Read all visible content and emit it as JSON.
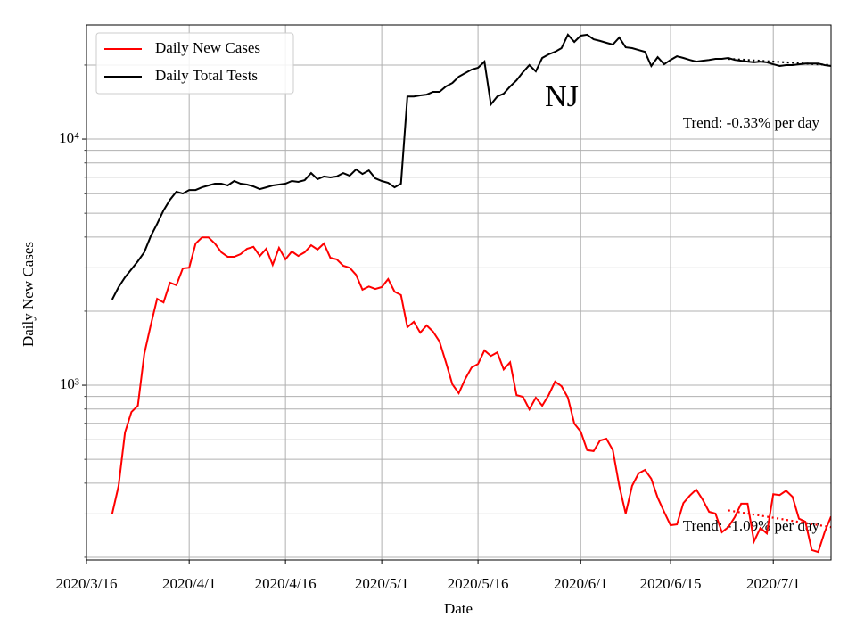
{
  "chart_data": {
    "type": "line",
    "annotations": {
      "title": "NJ",
      "trend_tests": "Trend: -0.33% per day",
      "trend_cases": "Trend: -1.09% per day"
    },
    "x_label": "Date",
    "y_label": "Daily New Cases",
    "log_y": true,
    "grid": true,
    "legend": "upper left",
    "xlim": [
      "2020/3/16",
      "2020/7/10"
    ],
    "xticks": [
      "2020/3/16",
      "2020/4/1",
      "2020/4/16",
      "2020/5/1",
      "2020/5/16",
      "2020/6/1",
      "2020/6/15",
      "2020/7/1"
    ],
    "ylim": [
      195,
      29100
    ],
    "yticks": [
      {
        "value": 1000,
        "label": "10³"
      },
      {
        "value": 10000,
        "label": "10⁴"
      }
    ],
    "yminor_ticks": [
      200,
      300,
      400,
      500,
      600,
      700,
      800,
      900,
      2000,
      3000,
      4000,
      5000,
      6000,
      7000,
      8000,
      9000,
      20000
    ],
    "x": [
      "2020/3/20",
      "2020/3/21",
      "2020/3/22",
      "2020/3/23",
      "2020/3/24",
      "2020/3/25",
      "2020/3/26",
      "2020/3/27",
      "2020/3/28",
      "2020/3/29",
      "2020/3/30",
      "2020/3/31",
      "2020/4/1",
      "2020/4/2",
      "2020/4/3",
      "2020/4/4",
      "2020/4/5",
      "2020/4/6",
      "2020/4/7",
      "2020/4/8",
      "2020/4/9",
      "2020/4/10",
      "2020/4/11",
      "2020/4/12",
      "2020/4/13",
      "2020/4/14",
      "2020/4/15",
      "2020/4/16",
      "2020/4/17",
      "2020/4/18",
      "2020/4/19",
      "2020/4/20",
      "2020/4/21",
      "2020/4/22",
      "2020/4/23",
      "2020/4/24",
      "2020/4/25",
      "2020/4/26",
      "2020/4/27",
      "2020/4/28",
      "2020/4/29",
      "2020/4/30",
      "2020/5/1",
      "2020/5/2",
      "2020/5/3",
      "2020/5/4",
      "2020/5/5",
      "2020/5/6",
      "2020/5/7",
      "2020/5/8",
      "2020/5/9",
      "2020/5/10",
      "2020/5/11",
      "2020/5/12",
      "2020/5/13",
      "2020/5/14",
      "2020/5/15",
      "2020/5/16",
      "2020/5/17",
      "2020/5/18",
      "2020/5/19",
      "2020/5/20",
      "2020/5/21",
      "2020/5/22",
      "2020/5/23",
      "2020/5/24",
      "2020/5/25",
      "2020/5/26",
      "2020/5/27",
      "2020/5/28",
      "2020/5/29",
      "2020/5/30",
      "2020/5/31",
      "2020/6/1",
      "2020/6/2",
      "2020/6/3",
      "2020/6/4",
      "2020/6/5",
      "2020/6/6",
      "2020/6/7",
      "2020/6/8",
      "2020/6/9",
      "2020/6/10",
      "2020/6/11",
      "2020/6/12",
      "2020/6/13",
      "2020/6/14",
      "2020/6/15",
      "2020/6/16",
      "2020/6/17",
      "2020/6/18",
      "2020/6/19",
      "2020/6/20",
      "2020/6/21",
      "2020/6/22",
      "2020/6/23",
      "2020/6/24",
      "2020/6/25",
      "2020/6/26",
      "2020/6/27",
      "2020/6/28",
      "2020/6/29",
      "2020/6/30",
      "2020/7/1",
      "2020/7/2",
      "2020/7/3",
      "2020/7/4",
      "2020/7/5",
      "2020/7/6",
      "2020/7/7",
      "2020/7/8",
      "2020/7/9",
      "2020/7/10"
    ],
    "series": [
      {
        "name": "Daily New Cases",
        "color": "#ff0000",
        "values": [
          300,
          390,
          643,
          778,
          826,
          1340,
          1750,
          2245,
          2170,
          2610,
          2550,
          2985,
          3005,
          3765,
          3990,
          3990,
          3765,
          3470,
          3325,
          3325,
          3410,
          3585,
          3650,
          3350,
          3585,
          3085,
          3615,
          3245,
          3495,
          3350,
          3470,
          3705,
          3560,
          3765,
          3295,
          3245,
          3060,
          3005,
          2810,
          2445,
          2520,
          2460,
          2505,
          2700,
          2400,
          2325,
          1720,
          1810,
          1635,
          1750,
          1650,
          1505,
          1240,
          1010,
          928,
          1060,
          1180,
          1220,
          1385,
          1315,
          1360,
          1160,
          1240,
          912,
          897,
          798,
          890,
          826,
          912,
          1035,
          992,
          890,
          698,
          648,
          545,
          540,
          596,
          606,
          545,
          390,
          301,
          390,
          438,
          453,
          417,
          349,
          306,
          270,
          272,
          332,
          356,
          377,
          343,
          306,
          301,
          253,
          265,
          291,
          330,
          330,
          232,
          263,
          250,
          361,
          358,
          373,
          352,
          287,
          279,
          214,
          210,
          253,
          293
        ]
      },
      {
        "name": "Daily Total Tests",
        "color": "#000000",
        "values": [
          2230,
          2505,
          2745,
          2960,
          3190,
          3470,
          4025,
          4525,
          5130,
          5670,
          6115,
          6010,
          6210,
          6210,
          6370,
          6485,
          6590,
          6590,
          6485,
          6760,
          6590,
          6535,
          6425,
          6265,
          6370,
          6485,
          6535,
          6590,
          6760,
          6700,
          6810,
          7280,
          6870,
          7050,
          6985,
          7050,
          7280,
          7100,
          7530,
          7220,
          7465,
          6930,
          6760,
          6640,
          6370,
          6590,
          14900,
          14900,
          15050,
          15170,
          15560,
          15560,
          16360,
          16900,
          17940,
          18550,
          19180,
          19500,
          20660,
          13840,
          14900,
          15300,
          16360,
          17340,
          18710,
          19990,
          18840,
          21370,
          22090,
          22630,
          23430,
          26560,
          24830,
          26320,
          26560,
          25450,
          25060,
          24620,
          24230,
          25880,
          23600,
          23430,
          23010,
          22630,
          19830,
          21540,
          20140,
          20990,
          21710,
          21370,
          20990,
          20660,
          20830,
          20990,
          21190,
          21190,
          21370,
          20990,
          20830,
          20660,
          20510,
          20660,
          20510,
          20140,
          19830,
          19990,
          19990,
          20140,
          20300,
          20300,
          20300,
          19990,
          19830
        ]
      }
    ],
    "trends": [
      {
        "color": "#ff0000",
        "style": "dotted",
        "x": [
          "2020/6/24",
          "2020/7/10"
        ],
        "values": [
          310,
          265
        ]
      },
      {
        "color": "#000000",
        "style": "dotted",
        "x": [
          "2020/6/24",
          "2020/7/10"
        ],
        "values": [
          21190,
          19990
        ]
      }
    ]
  }
}
